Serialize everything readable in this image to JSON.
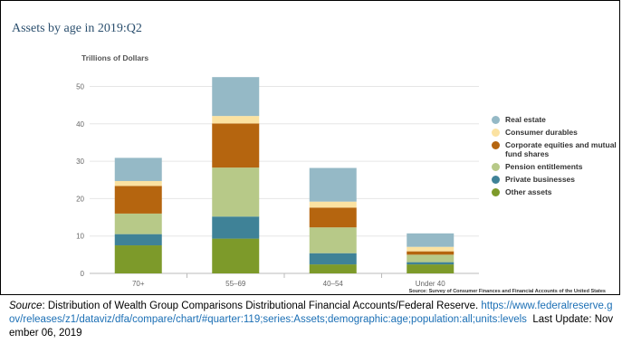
{
  "chart_data": {
    "type": "bar",
    "stacked": true,
    "title": "Assets by age in 2019:Q2",
    "ylabel": "Trillions of Dollars",
    "xlabel": "",
    "ylim": [
      0,
      55
    ],
    "yticks": [
      0,
      10,
      20,
      30,
      40,
      50
    ],
    "categories": [
      "70+",
      "55–69",
      "40–54",
      "Under 40"
    ],
    "grid": true,
    "legend_position": "right",
    "series": [
      {
        "name": "Other assets",
        "color": "#7d9a2a",
        "values": [
          7.5,
          9.3,
          2.4,
          2.4
        ]
      },
      {
        "name": "Private businesses",
        "color": "#3f8297",
        "values": [
          3.0,
          5.9,
          3.0,
          0.6
        ]
      },
      {
        "name": "Pension entitlements",
        "color": "#b7c988",
        "values": [
          5.5,
          13.1,
          6.9,
          2.0
        ]
      },
      {
        "name": "Corporate equities and mutual fund shares",
        "color": "#b5650f",
        "values": [
          7.4,
          11.8,
          5.3,
          0.9
        ]
      },
      {
        "name": "Consumer durables",
        "color": "#fbe2a1",
        "values": [
          1.3,
          2.0,
          1.6,
          1.2
        ]
      },
      {
        "name": "Real estate",
        "color": "#95b9c6",
        "values": [
          6.2,
          10.4,
          9.0,
          3.6
        ]
      }
    ],
    "legend_order": [
      5,
      4,
      3,
      2,
      1,
      0
    ],
    "source_note": "Source: Survey of Consumer Finances and Financial Accounts of the United States"
  },
  "citation": {
    "source_label": "Source",
    "source_text": ": Distribution of Wealth Group Comparisons Distributional Financial Accounts/Federal Reserve.",
    "url": "https://www.federalreserve.gov/releases/z1/dataviz/dfa/compare/chart/#quarter:119;series:Assets;demographic:age;population:all;units:levels",
    "last_update": "Last Update: November 06, 2019"
  }
}
